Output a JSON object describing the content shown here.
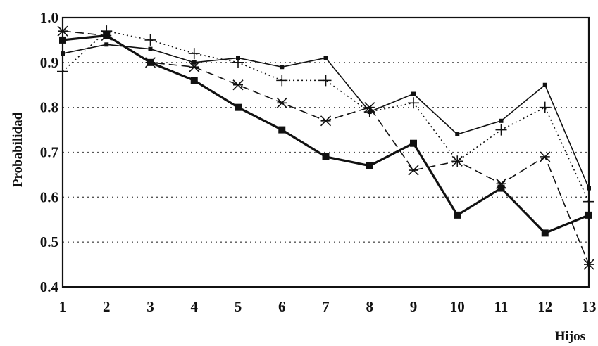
{
  "chart_data": {
    "type": "line",
    "title": "",
    "xlabel": "Hijos",
    "ylabel": "Probabilidad",
    "x": [
      1,
      2,
      3,
      4,
      5,
      6,
      7,
      8,
      9,
      10,
      11,
      12,
      13
    ],
    "xlim": [
      1,
      13
    ],
    "ylim": [
      0.4,
      1.0
    ],
    "yticks": [
      "0.4",
      "0.5",
      "0.6",
      "0.7",
      "0.8",
      "0.9",
      "1.0"
    ],
    "xticks": [
      "1",
      "2",
      "3",
      "4",
      "5",
      "6",
      "7",
      "8",
      "9",
      "10",
      "11",
      "12",
      "13"
    ],
    "grid": "horizontal dotted",
    "legend": "none",
    "series": [
      {
        "style": "thin solid line, small square markers",
        "color": "#111111",
        "values": [
          0.92,
          0.94,
          0.93,
          0.9,
          0.91,
          0.89,
          0.91,
          0.79,
          0.83,
          0.74,
          0.77,
          0.85,
          0.62
        ]
      },
      {
        "style": "dotted line, plus markers",
        "color": "#111111",
        "values": [
          0.88,
          0.97,
          0.95,
          0.92,
          0.9,
          0.86,
          0.86,
          0.79,
          0.81,
          0.68,
          0.75,
          0.8,
          0.59
        ]
      },
      {
        "style": "dashed line, star markers",
        "color": "#111111",
        "values": [
          0.97,
          0.96,
          0.9,
          0.89,
          0.85,
          0.81,
          0.77,
          0.8,
          0.66,
          0.68,
          0.63,
          0.69,
          0.45
        ]
      },
      {
        "style": "thick solid line, filled square markers",
        "color": "#111111",
        "values": [
          0.95,
          0.96,
          0.9,
          0.86,
          0.8,
          0.75,
          0.69,
          0.67,
          0.72,
          0.56,
          0.62,
          0.52,
          0.56
        ]
      }
    ]
  }
}
